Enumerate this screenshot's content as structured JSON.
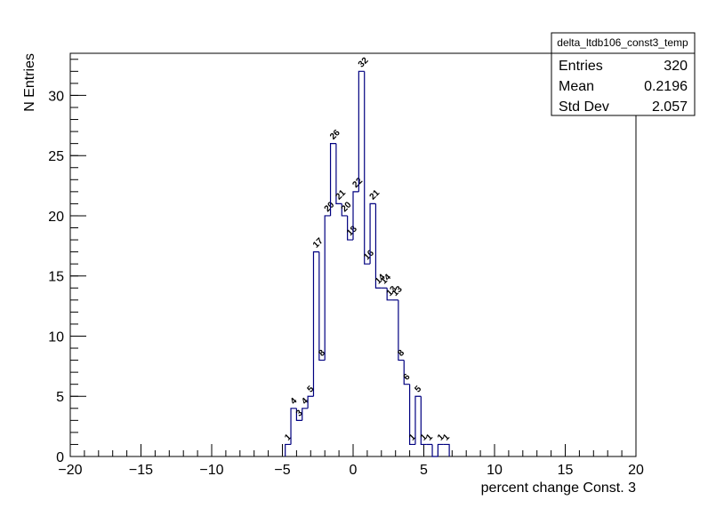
{
  "chart_data": {
    "type": "histogram",
    "title": "delta_ltdb106_const3_temp",
    "x_label": "percent change Const. 3",
    "y_label": "N Entries",
    "bins": [
      -4.8,
      -4.4,
      -4.0,
      -3.6,
      -3.2,
      -2.8,
      -2.4,
      -2.0,
      -1.6,
      -1.2,
      -0.8,
      -0.4,
      0,
      0.4,
      0.8,
      1.2,
      1.6,
      2.0,
      2.4,
      2.8,
      3.2,
      3.6,
      4.0,
      4.4,
      4.8,
      5.2,
      5.6,
      6.0,
      6.4,
      6.8
    ],
    "values": [
      1,
      4,
      3,
      4,
      5,
      17,
      8,
      20,
      26,
      21,
      20,
      18,
      22,
      32,
      16,
      21,
      14,
      14,
      13,
      13,
      8,
      6,
      1,
      5,
      1,
      1,
      0,
      1,
      1
    ],
    "color": "#000080",
    "xlim": [
      -20,
      20
    ],
    "xticks": [
      {
        "value": -20,
        "label": "−20"
      },
      {
        "value": -15,
        "label": "−15"
      },
      {
        "value": -10,
        "label": "−10"
      },
      {
        "value": -5,
        "label": "−5"
      },
      0,
      5,
      10,
      15,
      20
    ],
    "ylim": [
      0,
      33.5
    ],
    "yticks": [
      0,
      5,
      10,
      15,
      20,
      25,
      30
    ],
    "stats": [
      {
        "label": "Entries",
        "value": 320
      },
      {
        "label": "Mean",
        "value": 0.2196
      },
      {
        "label": "Std Dev",
        "value": 2.057
      }
    ]
  }
}
